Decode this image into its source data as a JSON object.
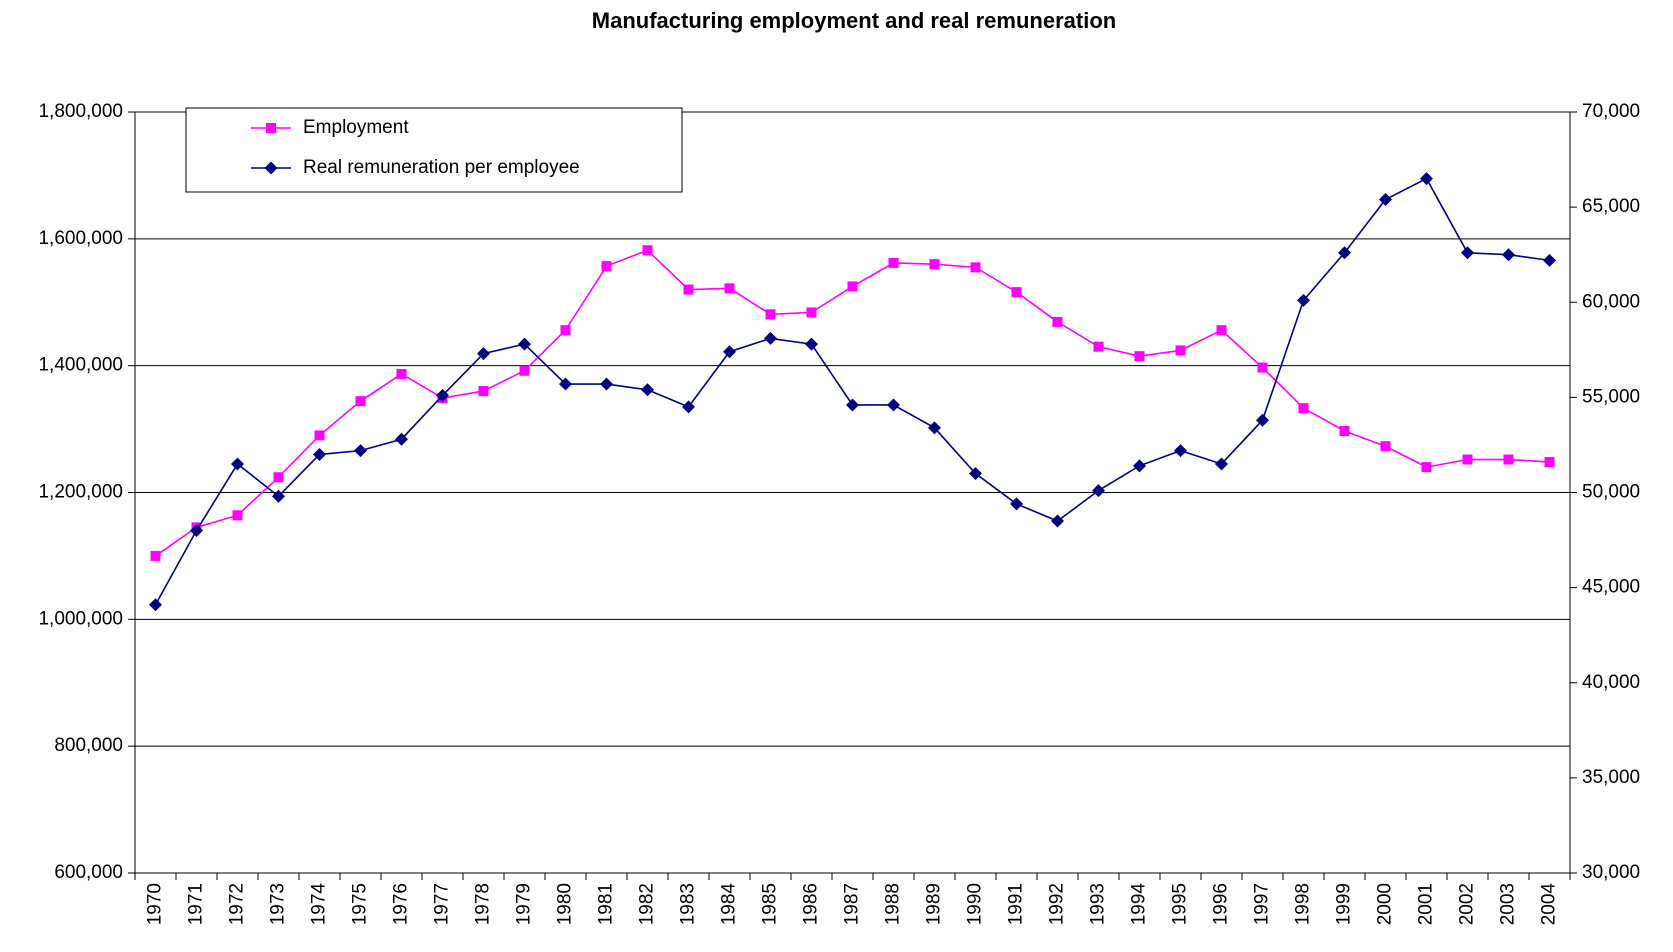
{
  "chart_data": {
    "type": "line",
    "title": "Manufacturing employment and real remuneration",
    "categories": [
      "1970",
      "1971",
      "1972",
      "1973",
      "1974",
      "1975",
      "1976",
      "1977",
      "1978",
      "1979",
      "1980",
      "1981",
      "1982",
      "1983",
      "1984",
      "1985",
      "1986",
      "1987",
      "1988",
      "1989",
      "1990",
      "1991",
      "1992",
      "1993",
      "1994",
      "1995",
      "1996",
      "1997",
      "1998",
      "1999",
      "2000",
      "2001",
      "2002",
      "2003",
      "2004"
    ],
    "series": [
      {
        "name": "Employment",
        "color": "#ff00ff",
        "marker": "square",
        "values": [
          1100000,
          1145000,
          1164000,
          1224000,
          1290000,
          1344000,
          1387000,
          1349000,
          1360000,
          1392000,
          1456000,
          1557000,
          1582000,
          1520000,
          1522000,
          1481000,
          1484000,
          1525000,
          1562000,
          1560000,
          1555000,
          1516000,
          1469000,
          1430000,
          1415000,
          1424000,
          1456000,
          1397000,
          1333000,
          1297000,
          1273000,
          1240000,
          1252000,
          1252000,
          1248000
        ]
      },
      {
        "name": "Real remuneration per employee",
        "color": "#000080",
        "marker": "diamond",
        "axis": "y2",
        "values": [
          44100,
          48000,
          51500,
          49800,
          52000,
          52200,
          52800,
          55100,
          57300,
          57800,
          55700,
          55700,
          55400,
          54500,
          57400,
          58100,
          57800,
          54600,
          54600,
          53400,
          51000,
          49400,
          48500,
          50100,
          51400,
          52200,
          51500,
          53800,
          60100,
          62600,
          65400,
          66500,
          62600,
          62500,
          62200
        ]
      }
    ],
    "ylim": [
      600000,
      1800000
    ],
    "yticks": [
      {
        "value": 600000,
        "label": "600,000"
      },
      {
        "value": 800000,
        "label": "800,000"
      },
      {
        "value": 1000000,
        "label": "1,000,000"
      },
      {
        "value": 1200000,
        "label": "1,200,000"
      },
      {
        "value": 1400000,
        "label": "1,400,000"
      },
      {
        "value": 1600000,
        "label": "1,600,000"
      },
      {
        "value": 1800000,
        "label": "1,800,000"
      }
    ],
    "y2lim": [
      30000,
      70000
    ],
    "y2ticks": [
      {
        "value": 30000,
        "label": "30,000"
      },
      {
        "value": 35000,
        "label": "35,000"
      },
      {
        "value": 40000,
        "label": "40,000"
      },
      {
        "value": 45000,
        "label": "45,000"
      },
      {
        "value": 50000,
        "label": "50,000"
      },
      {
        "value": 55000,
        "label": "55,000"
      },
      {
        "value": 60000,
        "label": "60,000"
      },
      {
        "value": 65000,
        "label": "65,000"
      },
      {
        "value": 70000,
        "label": "70,000"
      }
    ],
    "grid": true,
    "legend": "top-left"
  }
}
